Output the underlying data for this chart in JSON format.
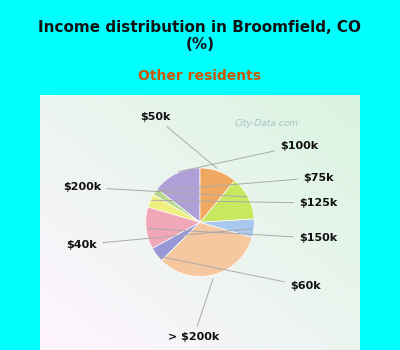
{
  "title": "Income distribution in Broomfield, CO\n(%)",
  "subtitle": "Other residents",
  "title_color": "#111111",
  "subtitle_color": "#cc5500",
  "background_outer": "#00ffff",
  "labels": [
    "$100k",
    "$75k",
    "$125k",
    "$150k",
    "$60k",
    "> $200k",
    "$40k",
    "$200k",
    "$50k"
  ],
  "sizes": [
    14.5,
    2.0,
    4.0,
    12.5,
    4.5,
    33.0,
    5.5,
    13.0,
    11.0
  ],
  "colors": [
    "#b0a0d8",
    "#b8d890",
    "#f0f080",
    "#f0a8b8",
    "#9898d8",
    "#f5c8a0",
    "#a8c8f0",
    "#c8e860",
    "#f0a860"
  ],
  "startangle": 90,
  "label_fontsize": 8.0,
  "label_color": "#111111"
}
